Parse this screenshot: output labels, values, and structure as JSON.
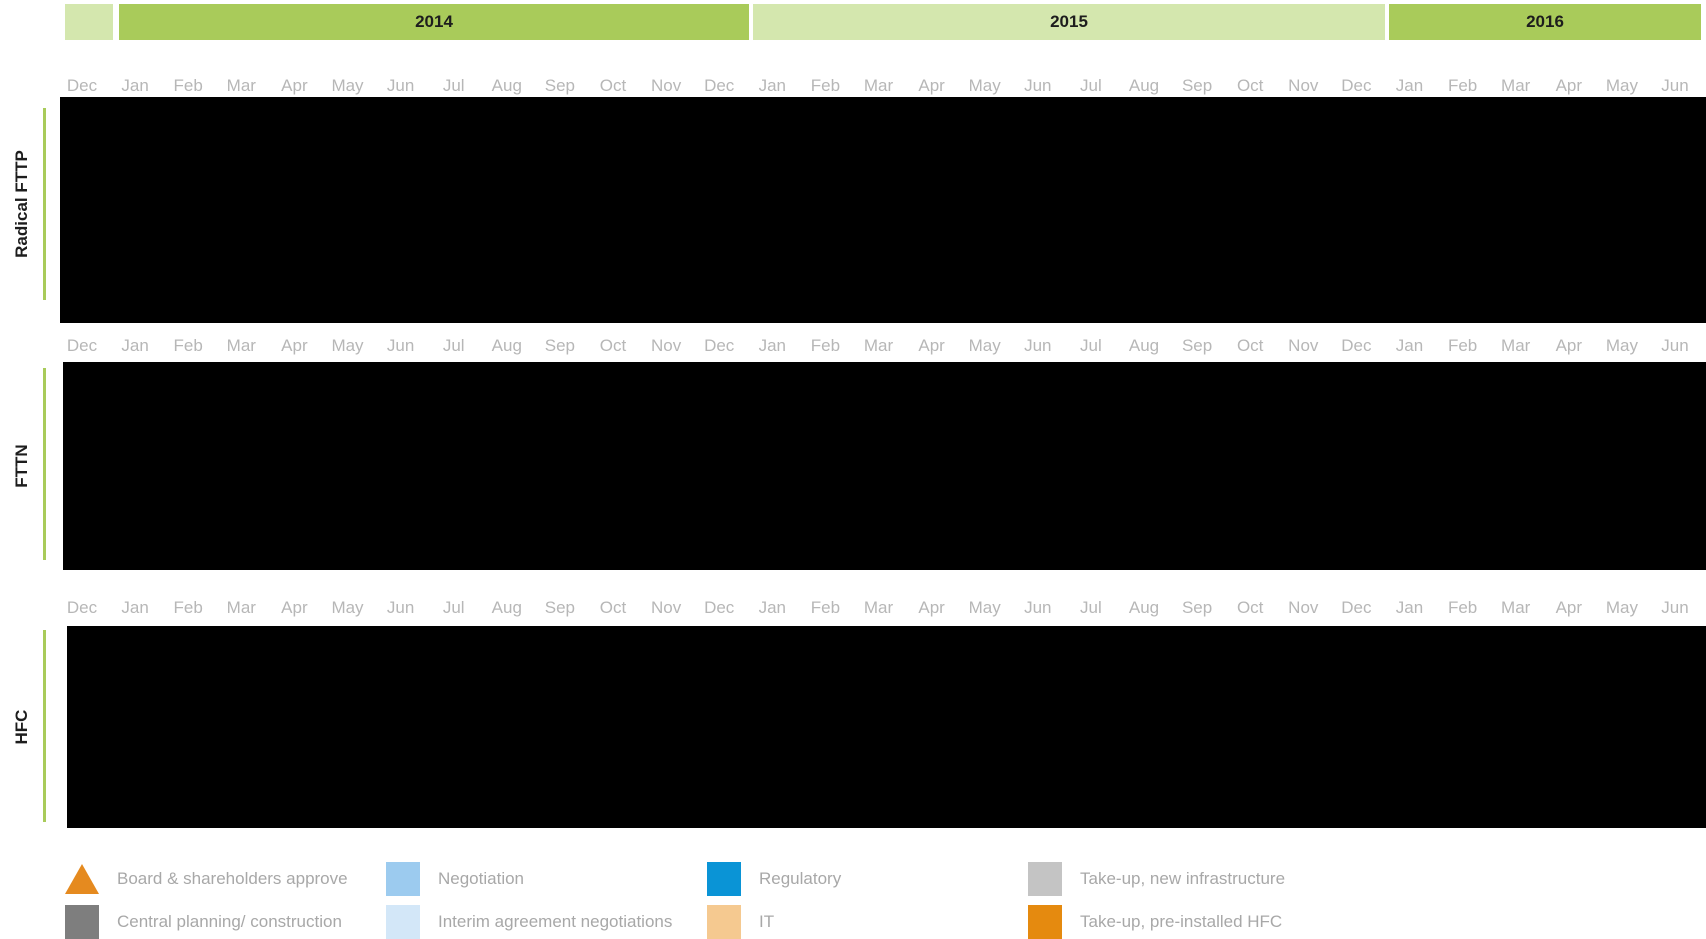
{
  "timeline": {
    "years": [
      "2014",
      "2015",
      "2016"
    ],
    "months": [
      "Dec",
      "Jan",
      "Feb",
      "Mar",
      "Apr",
      "May",
      "Jun",
      "Jul",
      "Aug",
      "Sep",
      "Oct",
      "Nov",
      "Dec",
      "Jan",
      "Feb",
      "Mar",
      "Apr",
      "May",
      "Jun",
      "Jul",
      "Aug",
      "Sep",
      "Oct",
      "Nov",
      "Dec",
      "Jan",
      "Feb",
      "Mar",
      "Apr",
      "May",
      "Jun"
    ]
  },
  "sections": [
    {
      "label": "Radical FTTP"
    },
    {
      "label": "FTTN"
    },
    {
      "label": "HFC"
    }
  ],
  "legend": [
    {
      "label": "Board & shareholders approve",
      "shape": "triangle",
      "color": "#e58a1f"
    },
    {
      "label": "Negotiation",
      "shape": "square",
      "color": "#9ccbef"
    },
    {
      "label": "Regulatory",
      "shape": "square",
      "color": "#0a94d6"
    },
    {
      "label": "Take-up, new infrastructure",
      "shape": "square",
      "color": "#c4c4c4"
    },
    {
      "label": "Central planning/ construction",
      "shape": "square",
      "color": "#7e7e7e"
    },
    {
      "label": "Interim agreement negotiations",
      "shape": "square",
      "color": "#d3e7f8"
    },
    {
      "label": "IT",
      "shape": "square",
      "color": "#f5c990"
    },
    {
      "label": "Take-up, pre-installed HFC",
      "shape": "square",
      "color": "#e58a0f"
    }
  ]
}
